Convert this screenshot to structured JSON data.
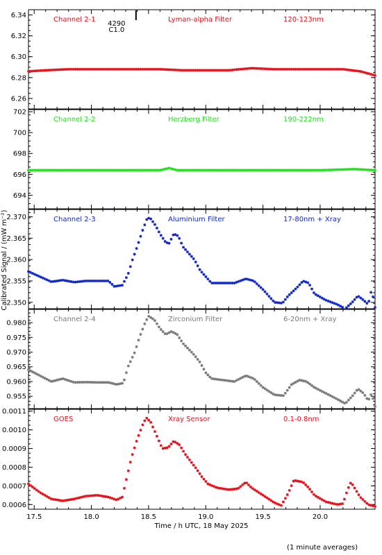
{
  "figure": {
    "shared_ylabel": "Calibrated Signal / (mW m⁻²)",
    "xlabel": "Time / h UTC, 18 May 2025",
    "footnote": "(1 minute averages)",
    "event_marker": {
      "label_top": "4290",
      "label_bottom": "C1.0",
      "x": 18.39
    }
  },
  "chart_data": [
    {
      "type": "scatter",
      "panel": "channel-2-1",
      "labels": [
        "Channel 2-1",
        "Lyman-alpha Filter",
        "120-123nm"
      ],
      "color": "#e8101a",
      "ylim": [
        6.25,
        6.345
      ],
      "yticks": [
        6.26,
        6.28,
        6.3,
        6.32,
        6.34
      ],
      "ytick_decimals": 2,
      "xlim": [
        17.45,
        20.48
      ],
      "points": [
        [
          17.45,
          6.286
        ],
        [
          17.6,
          6.287
        ],
        [
          17.8,
          6.288
        ],
        [
          18.0,
          6.288
        ],
        [
          18.2,
          6.288
        ],
        [
          18.4,
          6.288
        ],
        [
          18.6,
          6.288
        ],
        [
          18.8,
          6.287
        ],
        [
          19.0,
          6.287
        ],
        [
          19.2,
          6.287
        ],
        [
          19.3,
          6.288
        ],
        [
          19.4,
          6.289
        ],
        [
          19.6,
          6.288
        ],
        [
          19.8,
          6.288
        ],
        [
          20.0,
          6.288
        ],
        [
          20.2,
          6.288
        ],
        [
          20.35,
          6.286
        ],
        [
          20.42,
          6.284
        ],
        [
          20.48,
          6.282
        ]
      ]
    },
    {
      "type": "scatter",
      "panel": "channel-2-2",
      "labels": [
        "Channel 2-2",
        "Herzberg Filter",
        "190-222nm"
      ],
      "color": "#22e01e",
      "ylim": [
        692.7,
        702.2
      ],
      "yticks": [
        694,
        696,
        698,
        700,
        702
      ],
      "ytick_decimals": 0,
      "xlim": [
        17.45,
        20.48
      ],
      "points": [
        [
          17.45,
          696.4
        ],
        [
          18.0,
          696.4
        ],
        [
          18.6,
          696.4
        ],
        [
          18.68,
          696.6
        ],
        [
          18.75,
          696.4
        ],
        [
          19.5,
          696.4
        ],
        [
          20.0,
          696.4
        ],
        [
          20.3,
          696.5
        ],
        [
          20.48,
          696.4
        ]
      ]
    },
    {
      "type": "scatter",
      "panel": "channel-2-3",
      "labels": [
        "Channel 2-3",
        "Aluminium Filter",
        "17-80nm + Xray"
      ],
      "color": "#1028c8",
      "ylim": [
        2.3485,
        2.3717
      ],
      "yticks": [
        2.35,
        2.355,
        2.36,
        2.365,
        2.37
      ],
      "ytick_decimals": 3,
      "xlim": [
        17.45,
        20.48
      ],
      "points": [
        [
          17.45,
          2.3572
        ],
        [
          17.55,
          2.356
        ],
        [
          17.65,
          2.3548
        ],
        [
          17.75,
          2.3552
        ],
        [
          17.85,
          2.3547
        ],
        [
          17.95,
          2.355
        ],
        [
          18.05,
          2.355
        ],
        [
          18.15,
          2.355
        ],
        [
          18.2,
          2.3537
        ],
        [
          18.27,
          2.354
        ],
        [
          18.32,
          2.3565
        ],
        [
          18.36,
          2.36
        ],
        [
          18.4,
          2.363
        ],
        [
          18.45,
          2.367
        ],
        [
          18.49,
          2.3698
        ],
        [
          18.52,
          2.3695
        ],
        [
          18.56,
          2.368
        ],
        [
          18.6,
          2.366
        ],
        [
          18.65,
          2.364
        ],
        [
          18.68,
          2.3638
        ],
        [
          18.72,
          2.366
        ],
        [
          18.76,
          2.3655
        ],
        [
          18.8,
          2.363
        ],
        [
          18.85,
          2.3615
        ],
        [
          18.9,
          2.36
        ],
        [
          18.95,
          2.3575
        ],
        [
          19.0,
          2.356
        ],
        [
          19.05,
          2.3545
        ],
        [
          19.15,
          2.3545
        ],
        [
          19.25,
          2.3545
        ],
        [
          19.35,
          2.3555
        ],
        [
          19.42,
          2.355
        ],
        [
          19.5,
          2.353
        ],
        [
          19.6,
          2.35
        ],
        [
          19.67,
          2.3498
        ],
        [
          19.72,
          2.3515
        ],
        [
          19.8,
          2.3535
        ],
        [
          19.85,
          2.355
        ],
        [
          19.9,
          2.3545
        ],
        [
          19.95,
          2.352
        ],
        [
          20.05,
          2.3505
        ],
        [
          20.15,
          2.3495
        ],
        [
          20.22,
          2.3485
        ],
        [
          20.28,
          2.35
        ],
        [
          20.33,
          2.3515
        ],
        [
          20.38,
          2.3505
        ],
        [
          20.42,
          2.3495
        ],
        [
          20.45,
          2.353
        ],
        [
          20.48,
          2.3488
        ]
      ]
    },
    {
      "type": "scatter",
      "panel": "channel-2-4",
      "labels": [
        "Channel 2-4",
        "Zirconium Filter",
        "6-20nm + Xray"
      ],
      "color": "#7a7a7a",
      "ylim": [
        0.9508,
        0.9845
      ],
      "yticks": [
        0.955,
        0.96,
        0.965,
        0.97,
        0.975,
        0.98
      ],
      "ytick_decimals": 3,
      "xlim": [
        17.45,
        20.48
      ],
      "points": [
        [
          17.45,
          0.964
        ],
        [
          17.55,
          0.962
        ],
        [
          17.65,
          0.96
        ],
        [
          17.75,
          0.961
        ],
        [
          17.85,
          0.9597
        ],
        [
          17.95,
          0.9598
        ],
        [
          18.05,
          0.9597
        ],
        [
          18.15,
          0.9597
        ],
        [
          18.22,
          0.959
        ],
        [
          18.28,
          0.9595
        ],
        [
          18.32,
          0.965
        ],
        [
          18.38,
          0.97
        ],
        [
          18.42,
          0.975
        ],
        [
          18.47,
          0.98
        ],
        [
          18.5,
          0.9822
        ],
        [
          18.55,
          0.981
        ],
        [
          18.6,
          0.978
        ],
        [
          18.65,
          0.976
        ],
        [
          18.7,
          0.977
        ],
        [
          18.75,
          0.976
        ],
        [
          18.8,
          0.973
        ],
        [
          18.85,
          0.971
        ],
        [
          18.9,
          0.969
        ],
        [
          18.95,
          0.9665
        ],
        [
          19.0,
          0.963
        ],
        [
          19.05,
          0.961
        ],
        [
          19.15,
          0.9605
        ],
        [
          19.25,
          0.96
        ],
        [
          19.35,
          0.962
        ],
        [
          19.42,
          0.961
        ],
        [
          19.5,
          0.958
        ],
        [
          19.6,
          0.9555
        ],
        [
          19.68,
          0.9552
        ],
        [
          19.75,
          0.959
        ],
        [
          19.82,
          0.9605
        ],
        [
          19.88,
          0.96
        ],
        [
          19.95,
          0.958
        ],
        [
          20.05,
          0.956
        ],
        [
          20.15,
          0.954
        ],
        [
          20.22,
          0.9525
        ],
        [
          20.28,
          0.955
        ],
        [
          20.33,
          0.9575
        ],
        [
          20.38,
          0.956
        ],
        [
          20.42,
          0.9535
        ],
        [
          20.45,
          0.956
        ],
        [
          20.48,
          0.9515
        ]
      ]
    },
    {
      "type": "scatter",
      "panel": "goes",
      "labels": [
        "GOES",
        "Xray Sensor",
        "0.1-0.8nm"
      ],
      "color": "#e8101a",
      "ylim": [
        0.000575,
        0.00111
      ],
      "yticks": [
        0.0006,
        0.0007,
        0.0008,
        0.0009,
        0.001,
        0.0011
      ],
      "ytick_decimals": 4,
      "xlim": [
        17.45,
        20.48
      ],
      "points": [
        [
          17.45,
          0.00071
        ],
        [
          17.55,
          0.000665
        ],
        [
          17.65,
          0.00063
        ],
        [
          17.75,
          0.00062
        ],
        [
          17.85,
          0.00063
        ],
        [
          17.95,
          0.000645
        ],
        [
          18.05,
          0.00065
        ],
        [
          18.15,
          0.00064
        ],
        [
          18.22,
          0.000625
        ],
        [
          18.27,
          0.00064
        ],
        [
          18.3,
          0.00072
        ],
        [
          18.35,
          0.00085
        ],
        [
          18.4,
          0.00095
        ],
        [
          18.45,
          0.00103
        ],
        [
          18.48,
          0.001065
        ],
        [
          18.52,
          0.00104
        ],
        [
          18.57,
          0.00097
        ],
        [
          18.62,
          0.0009
        ],
        [
          18.67,
          0.000905
        ],
        [
          18.72,
          0.00094
        ],
        [
          18.77,
          0.00092
        ],
        [
          18.82,
          0.00087
        ],
        [
          18.87,
          0.00083
        ],
        [
          18.92,
          0.00079
        ],
        [
          18.97,
          0.000745
        ],
        [
          19.02,
          0.00071
        ],
        [
          19.1,
          0.00069
        ],
        [
          19.2,
          0.00068
        ],
        [
          19.28,
          0.000685
        ],
        [
          19.35,
          0.00072
        ],
        [
          19.4,
          0.00069
        ],
        [
          19.5,
          0.00065
        ],
        [
          19.6,
          0.00061
        ],
        [
          19.66,
          0.000595
        ],
        [
          19.72,
          0.00066
        ],
        [
          19.77,
          0.00073
        ],
        [
          19.85,
          0.00072
        ],
        [
          19.9,
          0.00069
        ],
        [
          19.95,
          0.00065
        ],
        [
          20.05,
          0.000615
        ],
        [
          20.15,
          0.0006
        ],
        [
          20.2,
          0.000605
        ],
        [
          20.24,
          0.00068
        ],
        [
          20.27,
          0.00072
        ],
        [
          20.3,
          0.00069
        ],
        [
          20.35,
          0.00064
        ],
        [
          20.42,
          0.0006
        ],
        [
          20.48,
          0.00059
        ]
      ]
    }
  ],
  "xaxis": {
    "xlim": [
      17.45,
      20.48
    ],
    "major_ticks": [
      17.5,
      18.0,
      18.5,
      19.0,
      19.5,
      20.0
    ],
    "major_labels": [
      "17.5",
      "18.0",
      "18.5",
      "19.0",
      "19.5",
      "20.0"
    ]
  }
}
